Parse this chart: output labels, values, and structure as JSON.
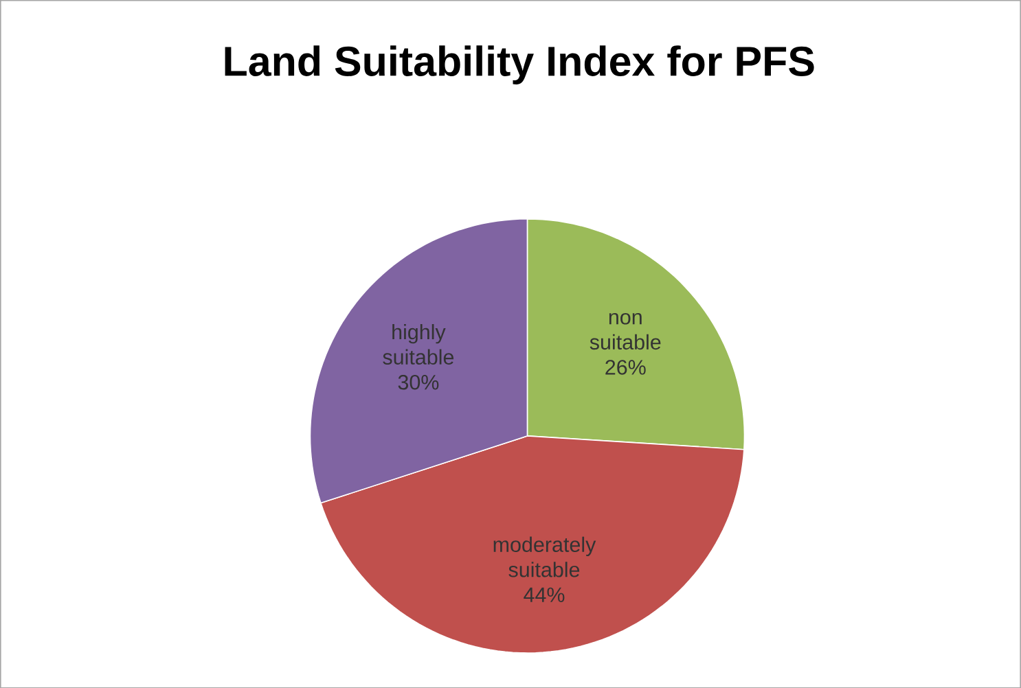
{
  "chart_data": {
    "type": "pie",
    "title": "Land Suitability Index for PFS",
    "categories": [
      "non suitable",
      "moderately suitable",
      "highly suitable"
    ],
    "values": [
      26,
      44,
      30
    ],
    "value_labels": [
      "26%",
      "44%",
      "30%"
    ],
    "colors": [
      "#9bbb59",
      "#c0504d",
      "#8064a2"
    ]
  }
}
